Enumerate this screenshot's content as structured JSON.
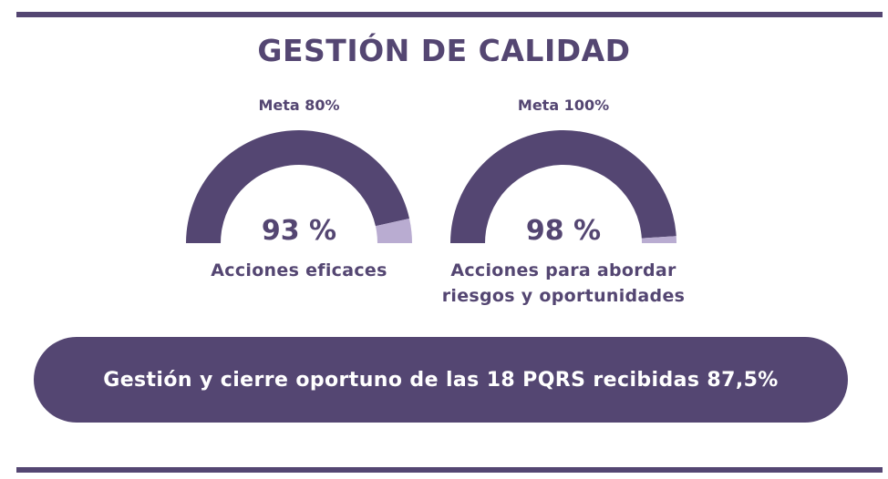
{
  "title": "GESTIÓN DE CALIDAD",
  "chart_data": {
    "type": "gauge",
    "gauges": [
      {
        "target_label": "Meta 80%",
        "value": 93,
        "value_label": "93 %",
        "label": "Acciones eficaces"
      },
      {
        "target_label": "Meta 100%",
        "value": 98,
        "value_label": "98 %",
        "label_lines": [
          "Acciones para abordar",
          "riesgos y oportunidades"
        ]
      }
    ],
    "colors": {
      "filled": "#544672",
      "remaining": "#b9acd1"
    }
  },
  "banner": {
    "text": "Gestión y cierre oportuno de las 18 PQRS recibidas 87,5%"
  }
}
